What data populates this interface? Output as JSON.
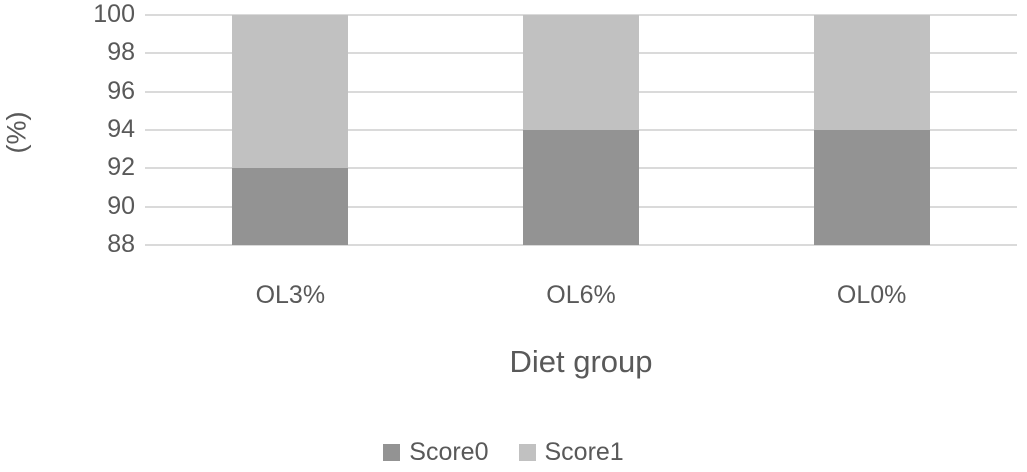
{
  "chart_data": {
    "type": "bar",
    "stacked": true,
    "title": "",
    "xlabel": "Diet group",
    "ylabel": "(%)",
    "categories": [
      "OL3%",
      "OL6%",
      "OL0%"
    ],
    "series": [
      {
        "name": "Score0",
        "color": "#939393",
        "values": [
          92,
          94,
          94
        ]
      },
      {
        "name": "Score1",
        "color": "#c1c1c1",
        "values": [
          8,
          6,
          6
        ]
      }
    ],
    "ylim": [
      88,
      100
    ],
    "yticks": [
      88,
      90,
      92,
      94,
      96,
      98,
      100
    ],
    "grid": true,
    "legend_position": "bottom",
    "legend_entries": [
      "Score0",
      "Score1"
    ],
    "colors": {
      "score0": "#939393",
      "score1": "#c1c1c1",
      "gridline": "#dadada",
      "text": "#595959",
      "background": "#ffffff"
    }
  }
}
